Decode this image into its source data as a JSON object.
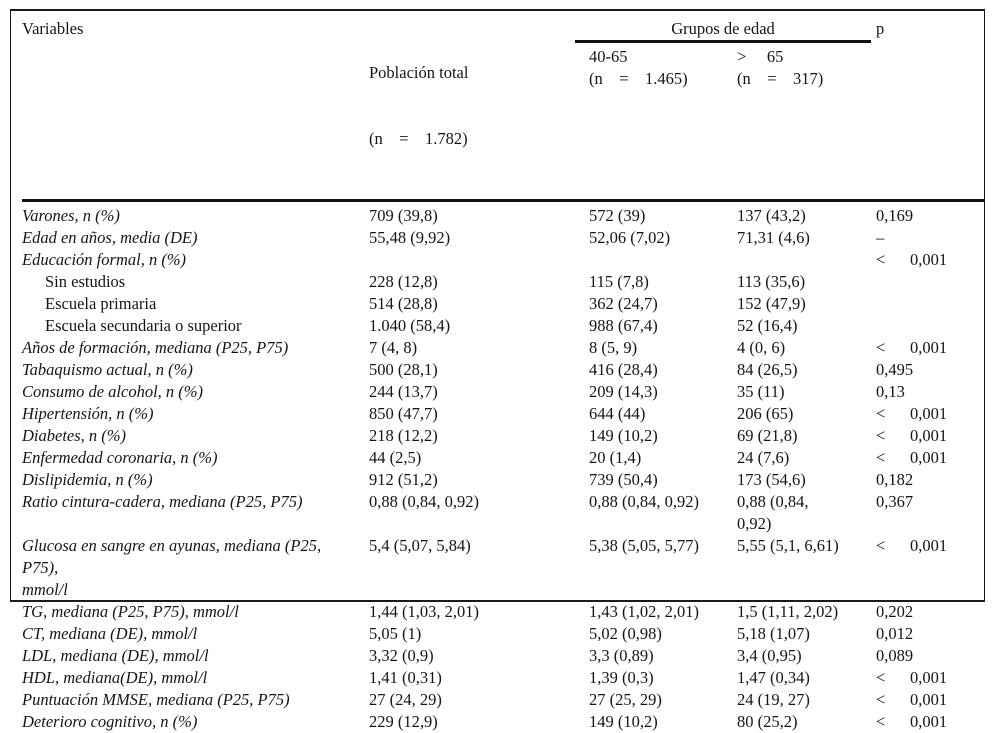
{
  "table": {
    "header": {
      "variables": "Variables",
      "total_line1": "Población total",
      "total_line2": "(n    =    1.782)",
      "groups_title": "Grupos de edad",
      "group1_line1": "40-65",
      "group1_line2": "(n    =    1.465)",
      "group2_line1": ">     65",
      "group2_line2": "(n    =    317)",
      "p": "p"
    },
    "rows": [
      {
        "label": "Varones, n (%)",
        "sub": false,
        "total": "709 (39,8)",
        "g1": "572 (39)",
        "g2": "137 (43,2)",
        "p": "0,169"
      },
      {
        "label": "Edad en años, media (DE)",
        "sub": false,
        "total": "55,48 (9,92)",
        "g1": "52,06 (7,02)",
        "g2": "71,31 (4,6)",
        "p": "–"
      },
      {
        "label": "Educación formal, n (%)",
        "sub": false,
        "total": "",
        "g1": "",
        "g2": "",
        "p": "<      0,001"
      },
      {
        "label": "Sin estudios",
        "sub": true,
        "total": "228 (12,8)",
        "g1": "115 (7,8)",
        "g2": "113 (35,6)",
        "p": ""
      },
      {
        "label": "Escuela primaria",
        "sub": true,
        "total": "514 (28,8)",
        "g1": "362 (24,7)",
        "g2": "152 (47,9)",
        "p": ""
      },
      {
        "label": "Escuela secundaria o superior",
        "sub": true,
        "total": "1.040 (58,4)",
        "g1": "988 (67,4)",
        "g2": "52 (16,4)",
        "p": ""
      },
      {
        "label": "Años de formación, mediana (P25, P75)",
        "sub": false,
        "total": "7 (4, 8)",
        "g1": "8 (5, 9)",
        "g2": "4 (0, 6)",
        "p": "<      0,001"
      },
      {
        "label": "Tabaquismo actual, n (%)",
        "sub": false,
        "total": "500 (28,1)",
        "g1": "416 (28,4)",
        "g2": "84 (26,5)",
        "p": "0,495"
      },
      {
        "label": "Consumo de alcohol, n (%)",
        "sub": false,
        "total": "244 (13,7)",
        "g1": "209 (14,3)",
        "g2": "35 (11)",
        "p": "0,13"
      },
      {
        "label": "Hipertensión, n (%)",
        "sub": false,
        "total": "850 (47,7)",
        "g1": "644 (44)",
        "g2": "206 (65)",
        "p": "<      0,001"
      },
      {
        "label": "Diabetes, n (%)",
        "sub": false,
        "total": "218 (12,2)",
        "g1": "149 (10,2)",
        "g2": "69 (21,8)",
        "p": "<      0,001"
      },
      {
        "label": "Enfermedad coronaria, n (%)",
        "sub": false,
        "total": "44 (2,5)",
        "g1": "20 (1,4)",
        "g2": "24 (7,6)",
        "p": "<      0,001"
      },
      {
        "label": "Dislipidemia, n (%)",
        "sub": false,
        "total": "912 (51,2)",
        "g1": "739 (50,4)",
        "g2": "173 (54,6)",
        "p": "0,182"
      },
      {
        "label": "Ratio cintura-cadera, mediana (P25, P75)",
        "sub": false,
        "total": "0,88 (0,84, 0,92)",
        "g1": "0,88 (0,84, 0,92)",
        "g2": "0,88 (0,84,\n0,92)",
        "p": "0,367"
      },
      {
        "label": "Glucosa en sangre en ayunas, mediana (P25, P75),\nmmol/l",
        "sub": false,
        "total": "5,4 (5,07, 5,84)",
        "g1": "5,38 (5,05, 5,77)",
        "g2": "5,55 (5,1, 6,61)",
        "p": "<      0,001"
      },
      {
        "label": "TG, mediana (P25, P75), mmol/l",
        "sub": false,
        "total": "1,44 (1,03, 2,01)",
        "g1": "1,43 (1,02, 2,01)",
        "g2": "1,5 (1,11, 2,02)",
        "p": "0,202"
      },
      {
        "label": "CT, mediana (DE), mmol/l",
        "sub": false,
        "total": "5,05 (1)",
        "g1": "5,02 (0,98)",
        "g2": "5,18 (1,07)",
        "p": "0,012"
      },
      {
        "label": "LDL, mediana (DE), mmol/l",
        "sub": false,
        "total": "3,32 (0,9)",
        "g1": "3,3 (0,89)",
        "g2": "3,4 (0,95)",
        "p": "0,089"
      },
      {
        "label": "HDL, mediana(DE), mmol/l",
        "sub": false,
        "total": "1,41 (0,31)",
        "g1": "1,39 (0,3)",
        "g2": "1,47 (0,34)",
        "p": "<      0,001"
      },
      {
        "label": "Puntuación MMSE, mediana (P25, P75)",
        "sub": false,
        "total": "27 (24, 29)",
        "g1": "27 (25, 29)",
        "g2": "24 (19, 27)",
        "p": "<      0,001"
      },
      {
        "label": "Deterioro cognitivo, n (%)",
        "sub": false,
        "total": "229 (12,9)",
        "g1": "149 (10,2)",
        "g2": "80 (25,2)",
        "p": "<      0,001"
      }
    ]
  }
}
